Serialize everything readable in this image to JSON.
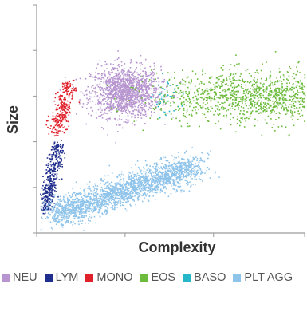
{
  "chart_data": {
    "type": "scatter",
    "title": "",
    "xlabel": "Complexity",
    "ylabel": "Size",
    "xlim": [
      0,
      100
    ],
    "ylim": [
      0,
      100
    ],
    "grid": false,
    "legend_placement": "bottom",
    "x_ticks": [
      0,
      33,
      66,
      100
    ],
    "y_ticks": [
      0,
      20,
      40,
      60,
      80,
      100
    ],
    "series": [
      {
        "name": "NEU",
        "color": "#b795cf",
        "count": 1400,
        "clusters": [
          {
            "cx": 33,
            "cy": 62,
            "sx": 6.5,
            "sy": 5.5,
            "w": 1
          }
        ]
      },
      {
        "name": "LYM",
        "color": "#1f2d8c",
        "count": 380,
        "clusters": [
          {
            "line": [
              [
                3,
                10
              ],
              [
                8,
                40
              ]
            ],
            "spread": 1.3
          }
        ]
      },
      {
        "name": "MONO",
        "color": "#e0202a",
        "count": 280,
        "clusters": [
          {
            "line": [
              [
                7,
                44
              ],
              [
                12,
                66
              ]
            ],
            "spread": 1.6
          }
        ]
      },
      {
        "name": "EOS",
        "color": "#6cbb3c",
        "count": 1300,
        "clusters": [
          {
            "cx": 82,
            "cy": 60,
            "sx": 19,
            "sy": 5.5,
            "w": 1
          }
        ]
      },
      {
        "name": "BASO",
        "color": "#25b7c8",
        "count": 40,
        "clusters": [
          {
            "cx": 48,
            "cy": 59,
            "sx": 2.5,
            "sy": 4.5,
            "w": 1
          }
        ]
      },
      {
        "name": "PLT AGG",
        "color": "#8ec3ea",
        "count": 2200,
        "clusters": [
          {
            "line": [
              [
                6,
                8
              ],
              [
                60,
                30
              ]
            ],
            "spread": 3.2
          }
        ]
      }
    ]
  },
  "legend": [
    {
      "label": "NEU",
      "color": "#b795cf"
    },
    {
      "label": "LYM",
      "color": "#1f2d8c"
    },
    {
      "label": "MONO",
      "color": "#e0202a"
    },
    {
      "label": "EOS",
      "color": "#6cbb3c"
    },
    {
      "label": "BASO",
      "color": "#25b7c8"
    },
    {
      "label": "PLT AGG",
      "color": "#8ec3ea"
    }
  ]
}
